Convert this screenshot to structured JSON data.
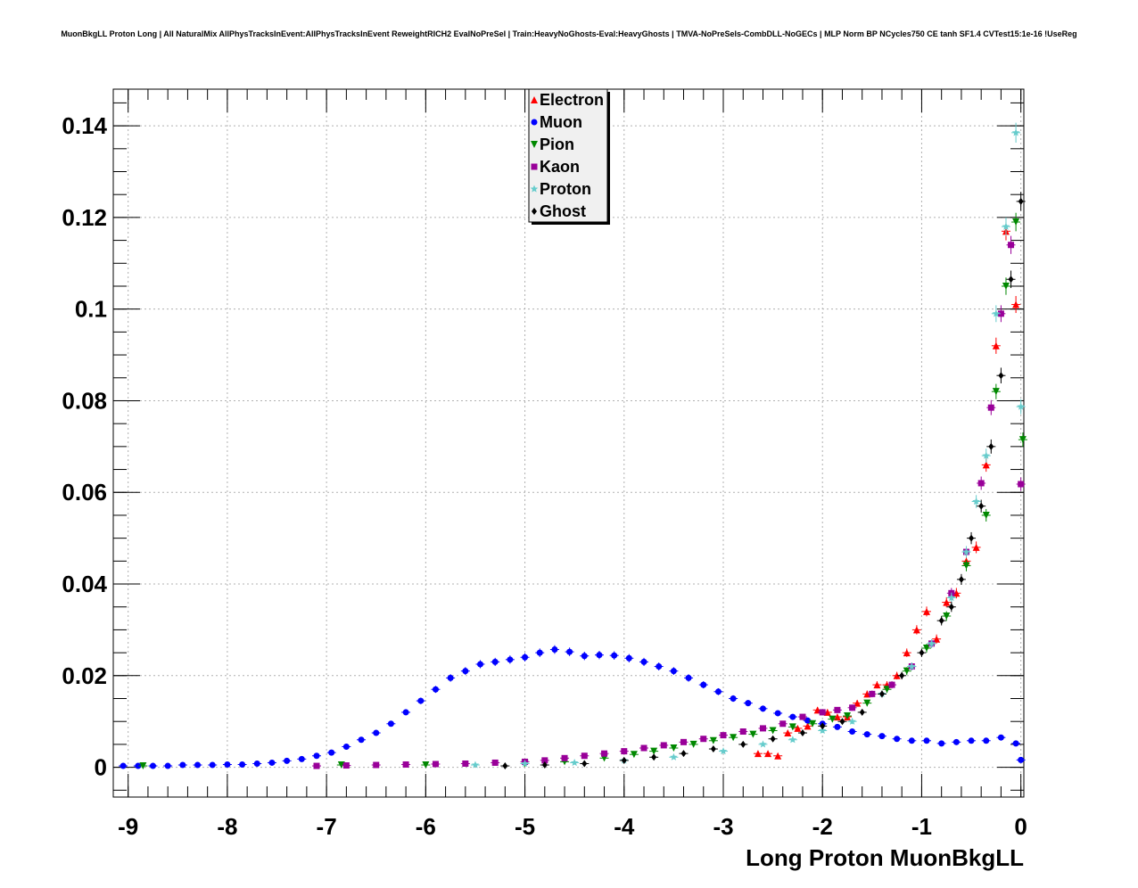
{
  "title": "MuonBkgLL Proton Long | All NaturalMix AllPhysTracksInEvent:AllPhysTracksInEvent ReweightRICH2 EvalNoPreSel | Train:HeavyNoGhosts-Eval:HeavyGhosts | TMVA-NoPreSels-CombDLL-NoGECs | MLP Norm BP NCycles750 CE tanh SF1.4 CVTest15:1e-16 !UseReg",
  "chart_data": {
    "type": "scatter",
    "title": "MuonBkgLL Proton Long | All NaturalMix AllPhysTracksInEvent:AllPhysTracksInEvent ReweightRICH2 EvalNoPreSel | Train:HeavyNoGhosts-Eval:HeavyGhosts | TMVA-NoPreSels-CombDLL-NoGECs | MLP Norm BP NCycles750 CE tanh SF1.4 CVTest15:1e-16 !UseReg",
    "xlabel": "Long Proton MuonBkgLL",
    "ylabel": "",
    "xlim": [
      -9.15,
      0.03
    ],
    "ylim": [
      -0.0065,
      0.148
    ],
    "grid": true,
    "legend_position": "top-center",
    "xticks": [
      "-9",
      "-8",
      "-7",
      "-6",
      "-5",
      "-4",
      "-3",
      "-2",
      "-1",
      "0"
    ],
    "yticks": [
      "0",
      "0.02",
      "0.04",
      "0.06",
      "0.08",
      "0.1",
      "0.12",
      "0.14"
    ],
    "series": [
      {
        "name": "Electron",
        "color": "#ff0000",
        "marker": "triangle-up",
        "x": [
          -2.65,
          -2.55,
          -2.45,
          -2.35,
          -2.25,
          -2.15,
          -2.05,
          -1.95,
          -1.85,
          -1.75,
          -1.65,
          -1.55,
          -1.45,
          -1.35,
          -1.25,
          -1.15,
          -1.05,
          -0.95,
          -0.85,
          -0.75,
          -0.65,
          -0.55,
          -0.45,
          -0.35,
          -0.25,
          -0.15,
          -0.05
        ],
        "y": [
          0.003,
          0.003,
          0.0025,
          0.0075,
          0.0085,
          0.009,
          0.0125,
          0.012,
          0.011,
          0.011,
          0.014,
          0.016,
          0.018,
          0.018,
          0.02,
          0.025,
          0.03,
          0.034,
          0.028,
          0.036,
          0.038,
          0.045,
          0.048,
          0.066,
          0.092,
          0.117,
          0.101
        ]
      },
      {
        "name": "Muon",
        "color": "#0000ff",
        "marker": "circle",
        "x": [
          -9.05,
          -8.9,
          -8.75,
          -8.6,
          -8.45,
          -8.3,
          -8.15,
          -8.0,
          -7.85,
          -7.7,
          -7.55,
          -7.4,
          -7.25,
          -7.1,
          -6.95,
          -6.8,
          -6.65,
          -6.5,
          -6.35,
          -6.2,
          -6.05,
          -5.9,
          -5.75,
          -5.6,
          -5.45,
          -5.3,
          -5.15,
          -5.0,
          -4.85,
          -4.7,
          -4.55,
          -4.4,
          -4.25,
          -4.1,
          -3.95,
          -3.8,
          -3.65,
          -3.5,
          -3.35,
          -3.2,
          -3.05,
          -2.9,
          -2.75,
          -2.6,
          -2.45,
          -2.3,
          -2.15,
          -2.0,
          -1.85,
          -1.7,
          -1.55,
          -1.4,
          -1.25,
          -1.1,
          -0.95,
          -0.8,
          -0.65,
          -0.5,
          -0.35,
          -0.2,
          -0.05,
          0.0
        ],
        "y": [
          0.0003,
          0.0003,
          0.0003,
          0.0003,
          0.0005,
          0.0005,
          0.0005,
          0.0006,
          0.0006,
          0.0008,
          0.001,
          0.0014,
          0.0018,
          0.0025,
          0.0032,
          0.0045,
          0.006,
          0.0075,
          0.0095,
          0.012,
          0.0145,
          0.017,
          0.0195,
          0.021,
          0.0225,
          0.023,
          0.0235,
          0.024,
          0.025,
          0.0257,
          0.0252,
          0.0243,
          0.0245,
          0.0244,
          0.0238,
          0.023,
          0.022,
          0.021,
          0.0195,
          0.018,
          0.0165,
          0.015,
          0.014,
          0.0128,
          0.0118,
          0.011,
          0.0102,
          0.0095,
          0.0088,
          0.0078,
          0.0072,
          0.0068,
          0.0062,
          0.0058,
          0.0058,
          0.0052,
          0.0055,
          0.0058,
          0.0058,
          0.0065,
          0.0052,
          0.0016
        ]
      },
      {
        "name": "Pion",
        "color": "#008800",
        "marker": "triangle-down",
        "x": [
          -8.85,
          -6.85,
          -6.0,
          -5.0,
          -4.6,
          -4.2,
          -3.9,
          -3.7,
          -3.5,
          -3.3,
          -3.1,
          -2.9,
          -2.7,
          -2.5,
          -2.3,
          -2.1,
          -1.9,
          -1.75,
          -1.55,
          -1.35,
          -1.15,
          -0.95,
          -0.75,
          -0.55,
          -0.35,
          -0.25,
          -0.15,
          -0.05,
          0.02
        ],
        "y": [
          0.0003,
          0.0005,
          0.0005,
          0.0008,
          0.0012,
          0.002,
          0.0028,
          0.0035,
          0.0042,
          0.005,
          0.0058,
          0.0065,
          0.0072,
          0.008,
          0.0088,
          0.0095,
          0.0105,
          0.0112,
          0.014,
          0.017,
          0.021,
          0.026,
          0.033,
          0.044,
          0.055,
          0.082,
          0.105,
          0.119,
          0.0715
        ]
      },
      {
        "name": "Kaon",
        "color": "#990099",
        "marker": "square",
        "x": [
          -7.1,
          -6.8,
          -6.5,
          -6.2,
          -5.9,
          -5.6,
          -5.3,
          -5.0,
          -4.8,
          -4.6,
          -4.4,
          -4.2,
          -4.0,
          -3.8,
          -3.6,
          -3.4,
          -3.2,
          -3.0,
          -2.8,
          -2.6,
          -2.4,
          -2.2,
          -2.0,
          -1.85,
          -1.7,
          -1.5,
          -1.3,
          -1.1,
          -0.9,
          -0.7,
          -0.55,
          -0.4,
          -0.3,
          -0.2,
          -0.1,
          0.0
        ],
        "y": [
          0.0003,
          0.0004,
          0.0005,
          0.0006,
          0.0007,
          0.0008,
          0.001,
          0.0012,
          0.0015,
          0.002,
          0.0025,
          0.003,
          0.0035,
          0.0042,
          0.0048,
          0.0055,
          0.0062,
          0.007,
          0.0078,
          0.0085,
          0.0095,
          0.011,
          0.012,
          0.0125,
          0.013,
          0.016,
          0.018,
          0.022,
          0.027,
          0.038,
          0.047,
          0.062,
          0.0785,
          0.099,
          0.114,
          0.0618
        ]
      },
      {
        "name": "Proton",
        "color": "#66cccc",
        "marker": "star",
        "x": [
          -5.5,
          -5.0,
          -4.5,
          -4.0,
          -3.5,
          -3.0,
          -2.6,
          -2.3,
          -2.0,
          -1.7,
          -1.4,
          -1.1,
          -0.9,
          -0.7,
          -0.55,
          -0.45,
          -0.35,
          -0.25,
          -0.15,
          -0.05,
          0.0
        ],
        "y": [
          0.0005,
          0.0008,
          0.001,
          0.0015,
          0.0022,
          0.0035,
          0.005,
          0.006,
          0.008,
          0.01,
          0.016,
          0.022,
          0.027,
          0.037,
          0.047,
          0.058,
          0.068,
          0.099,
          0.118,
          0.1385,
          0.0787
        ]
      },
      {
        "name": "Ghost",
        "color": "#000000",
        "marker": "diamond",
        "x": [
          -5.2,
          -4.8,
          -4.4,
          -4.0,
          -3.7,
          -3.4,
          -3.1,
          -2.8,
          -2.5,
          -2.2,
          -2.0,
          -1.8,
          -1.6,
          -1.4,
          -1.2,
          -1.0,
          -0.8,
          -0.7,
          -0.6,
          -0.5,
          -0.4,
          -0.3,
          -0.2,
          -0.1,
          0.0
        ],
        "y": [
          0.0003,
          0.0005,
          0.0008,
          0.0015,
          0.0022,
          0.003,
          0.004,
          0.005,
          0.0062,
          0.0075,
          0.009,
          0.01,
          0.012,
          0.016,
          0.02,
          0.025,
          0.032,
          0.035,
          0.041,
          0.05,
          0.057,
          0.07,
          0.0855,
          0.1065,
          0.1235
        ]
      }
    ]
  }
}
